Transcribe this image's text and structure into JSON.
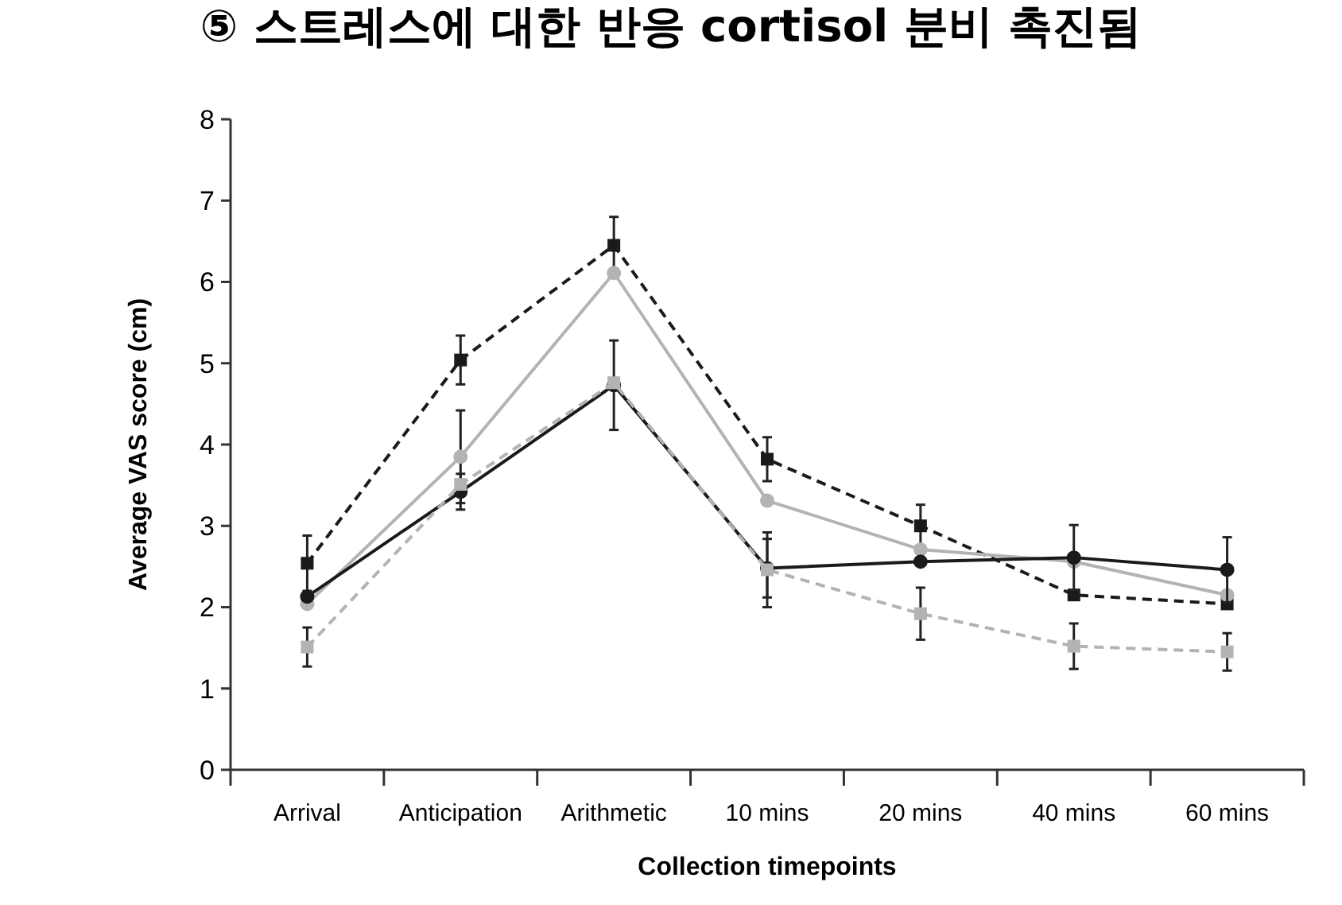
{
  "chart_data": {
    "type": "line",
    "title": "⑤ 스트레스에 대한 반응 cortisol 분비 촉진됨",
    "xlabel": "Collection timepoints",
    "ylabel": "Average VAS score (cm)",
    "categories": [
      "Arrival",
      "Anticipation",
      "Arithmetic",
      "10 mins",
      "20 mins",
      "40 mins",
      "60 mins"
    ],
    "ylim": [
      0,
      8
    ],
    "yticks": [
      0,
      1,
      2,
      3,
      4,
      5,
      6,
      7,
      8
    ],
    "grid": false,
    "series": [
      {
        "color": "#1a1a1a",
        "marker": "square",
        "line_style": "dashed",
        "values": [
          2.54,
          5.04,
          6.45,
          3.82,
          3.0,
          2.15,
          2.04
        ],
        "errors": [
          0.34,
          0.3,
          0.35,
          0.27,
          0.26,
          null,
          null
        ]
      },
      {
        "color": "#b3b3b3",
        "marker": "circle",
        "line_style": "solid",
        "values": [
          2.04,
          3.85,
          6.11,
          3.31,
          2.71,
          2.56,
          2.15
        ],
        "errors": [
          null,
          0.57,
          null,
          null,
          null,
          null,
          null
        ]
      },
      {
        "color": "#1a1a1a",
        "marker": "circle",
        "line_style": "solid",
        "values": [
          2.13,
          3.42,
          4.73,
          2.48,
          2.56,
          2.61,
          2.46
        ],
        "errors": [
          null,
          0.22,
          0.55,
          0.36,
          null,
          0.4,
          0.4
        ]
      },
      {
        "color": "#b3b3b3",
        "marker": "square",
        "line_style": "dashed",
        "values": [
          1.51,
          3.51,
          4.76,
          2.46,
          1.92,
          1.52,
          1.45
        ],
        "errors": [
          0.24,
          null,
          null,
          0.46,
          0.32,
          0.28,
          0.23
        ]
      }
    ]
  }
}
